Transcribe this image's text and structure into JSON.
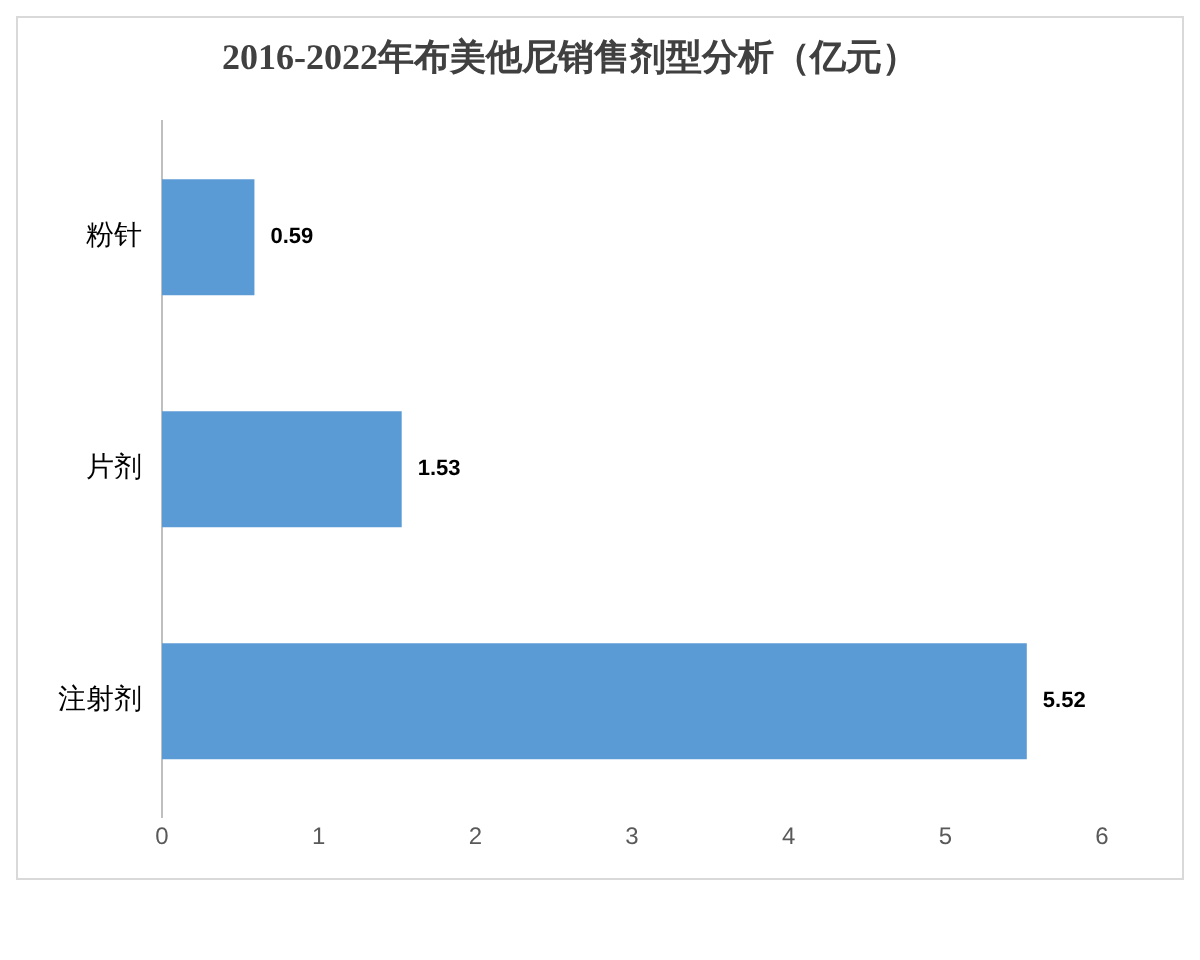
{
  "chart_data": {
    "type": "bar",
    "orientation": "horizontal",
    "title": "2016-2022年布美他尼销售剂型分析（亿元）",
    "categories": [
      "粉针",
      "片剂",
      "注射剂"
    ],
    "values": [
      0.59,
      1.53,
      5.52
    ],
    "color": "#5b9bd5",
    "xlim": [
      0,
      6
    ],
    "xticks": [
      0,
      1,
      2,
      3,
      4,
      5,
      6
    ],
    "grid": false,
    "legend": false,
    "data_labels": true
  }
}
